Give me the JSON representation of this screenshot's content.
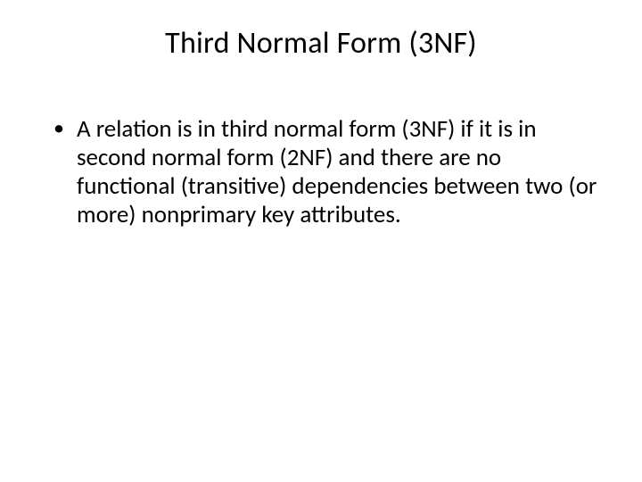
{
  "slide": {
    "title": "Third Normal Form (3NF)",
    "bullets": [
      "A relation is in third normal form (3NF) if it is in second normal form (2NF) and there are no functional (transitive) dependencies between two (or more) nonprimary key attributes."
    ]
  },
  "style": {
    "background_color": "#ffffff",
    "text_color": "#000000",
    "title_fontsize": 34,
    "body_fontsize": 27,
    "font_family": "Calibri"
  }
}
